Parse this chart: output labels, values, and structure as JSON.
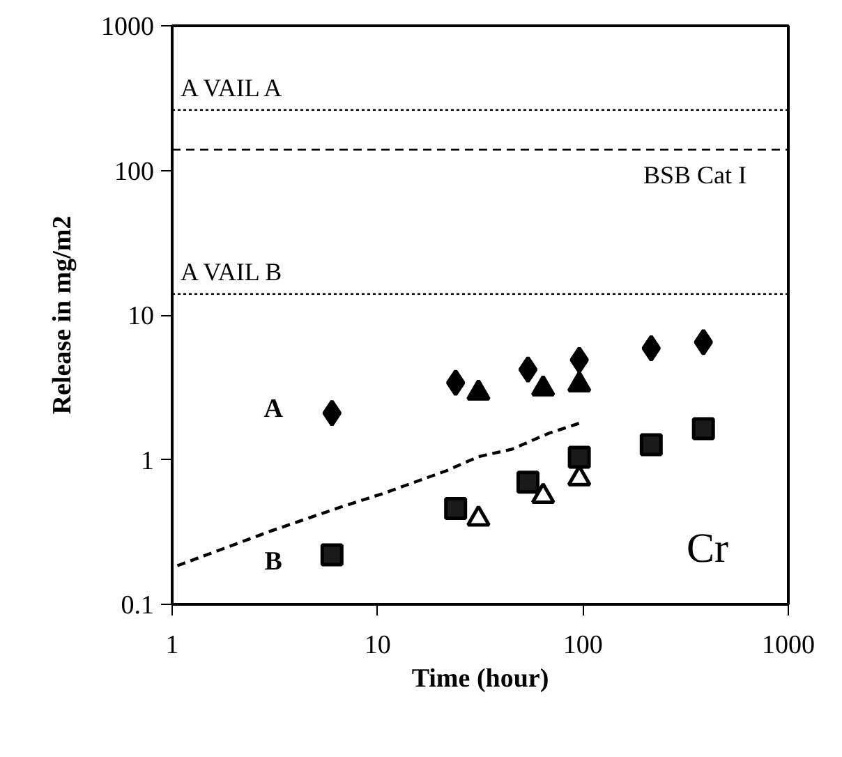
{
  "chart_data": {
    "type": "scatter",
    "xlabel": "Time (hour)",
    "ylabel": "Release in mg/m2",
    "log": "xy",
    "xlim": [
      1,
      1000
    ],
    "xticks": [
      1,
      10,
      100,
      1000
    ],
    "ylim": [
      0.1,
      1000
    ],
    "yticks": [
      0.1,
      1,
      10,
      100,
      1000
    ],
    "grid": false,
    "series": [
      {
        "marker": "diamond",
        "color": "#000000",
        "x": [
          6,
          24,
          54,
          96,
          215,
          386
        ],
        "values": [
          2.1,
          3.4,
          4.2,
          4.9,
          5.9,
          6.5
        ]
      },
      {
        "marker": "triangle",
        "color": "#000000",
        "x": [
          31,
          64,
          96
        ],
        "values": [
          2.9,
          3.1,
          3.3
        ]
      },
      {
        "marker": "square",
        "color": "#1a1a1a",
        "x": [
          6,
          24,
          54,
          96,
          215,
          386
        ],
        "values": [
          0.22,
          0.46,
          0.7,
          1.04,
          1.27,
          1.64
        ]
      },
      {
        "marker": "triangle",
        "color": "#ffffff",
        "x": [
          31,
          64,
          96
        ],
        "values": [
          0.39,
          0.56,
          0.74
        ]
      },
      {
        "type": "line",
        "line_style": "dashed",
        "color": "#000000",
        "x": [
          1.06,
          3,
          6.6,
          10.5,
          21.7,
          31,
          45,
          68,
          101
        ],
        "values": [
          0.185,
          0.32,
          0.47,
          0.58,
          0.84,
          1.05,
          1.18,
          1.52,
          1.83
        ]
      }
    ],
    "ref_lines": [
      {
        "axis": "y",
        "value": 262,
        "label": "A VAIL A",
        "line_style": "dotted",
        "color": "#000000"
      },
      {
        "axis": "y",
        "value": 139,
        "label": "BSB Cat I",
        "line_style": "dashed",
        "color": "#000000"
      },
      {
        "axis": "y",
        "value": 14,
        "label": "A VAIL B",
        "line_style": "dotted",
        "color": "#000000"
      }
    ],
    "annotations": [
      "A",
      "B",
      "Cr"
    ]
  }
}
